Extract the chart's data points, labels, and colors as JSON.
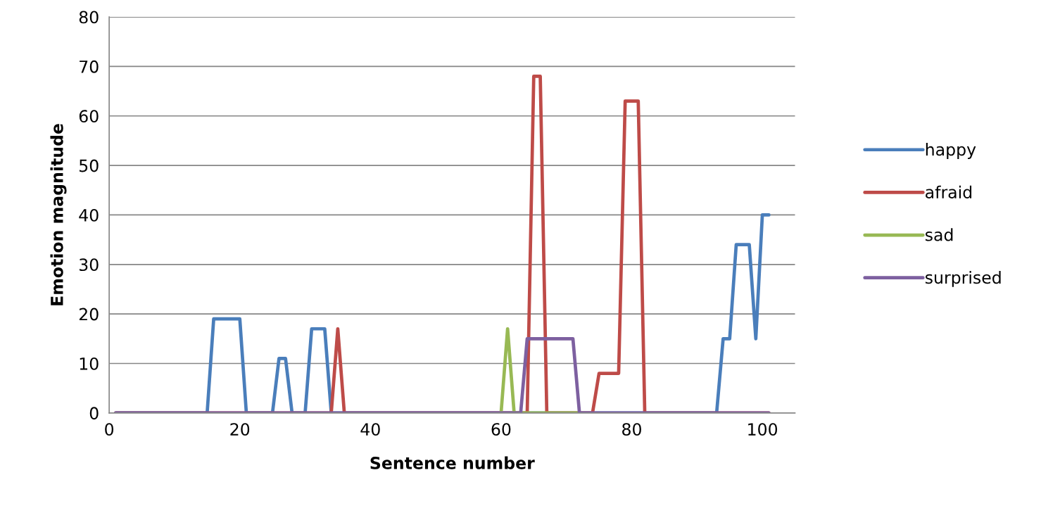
{
  "chart_data": {
    "type": "line",
    "xlabel": "Sentence number",
    "ylabel": "Emotion magnitude",
    "series": [
      {
        "name": "happy",
        "color": "#4a7ebb",
        "x": [
          1,
          15,
          16,
          20,
          21,
          25,
          26,
          27,
          28,
          30,
          31,
          33,
          34,
          93,
          94,
          95,
          96,
          98,
          99,
          100,
          101
        ],
        "values": [
          0,
          0,
          19,
          19,
          0,
          0,
          11,
          11,
          0,
          0,
          17,
          17,
          0,
          0,
          15,
          15,
          34,
          34,
          15,
          40,
          40
        ]
      },
      {
        "name": "afraid",
        "color": "#be4b48",
        "x": [
          1,
          34,
          35,
          36,
          64,
          65,
          66,
          67,
          74,
          75,
          78,
          79,
          81,
          82,
          101
        ],
        "values": [
          0,
          0,
          17,
          0,
          0,
          68,
          68,
          0,
          0,
          8,
          8,
          63,
          63,
          0,
          0
        ]
      },
      {
        "name": "sad",
        "color": "#98b954",
        "x": [
          60,
          61,
          62,
          72
        ],
        "values": [
          0,
          17,
          0,
          0
        ]
      },
      {
        "name": "surprised",
        "color": "#7d60a0",
        "x": [
          1,
          63,
          64,
          71,
          72,
          101
        ],
        "values": [
          0,
          0,
          15,
          15,
          0,
          0
        ]
      }
    ],
    "xlim": [
      0,
      105
    ],
    "xticks": [
      0,
      20,
      40,
      60,
      80,
      100
    ],
    "ylim": [
      0,
      80
    ],
    "yticks": [
      0,
      10,
      20,
      30,
      40,
      50,
      60,
      70,
      80
    ],
    "grid": "y",
    "legend": "right",
    "marker": "none",
    "line_style": "solid"
  }
}
